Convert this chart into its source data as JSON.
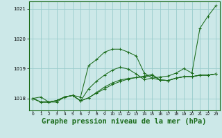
{
  "bg_color": "#cce8e8",
  "grid_color": "#99cccc",
  "line_color": "#1a6b1a",
  "xlabel": "Graphe pression niveau de la mer (hPa)",
  "xlabel_fontsize": 7.5,
  "ylim": [
    1017.6,
    1021.25
  ],
  "xlim": [
    -0.5,
    23.5
  ],
  "yticks": [
    1018,
    1019,
    1020,
    1021
  ],
  "xticks": [
    0,
    1,
    2,
    3,
    4,
    5,
    6,
    7,
    8,
    9,
    10,
    11,
    12,
    13,
    14,
    15,
    16,
    17,
    18,
    19,
    20,
    21,
    22,
    23
  ],
  "series": [
    [
      1018.0,
      1018.05,
      1017.88,
      1017.88,
      1018.05,
      1018.1,
      1018.05,
      1019.1,
      1019.3,
      1019.55,
      1019.65,
      1019.65,
      1019.55,
      1019.42,
      1018.85,
      1018.68,
      1018.72,
      1018.75,
      1018.85,
      1019.0,
      1018.85,
      1020.35,
      1020.75,
      1021.1
    ],
    [
      1018.0,
      1017.88,
      1017.88,
      1017.93,
      1018.05,
      1018.1,
      1017.92,
      1018.02,
      1018.18,
      1018.32,
      1018.47,
      1018.57,
      1018.65,
      1018.7,
      1018.75,
      1018.8,
      1018.62,
      1018.6,
      1018.68,
      1018.73,
      1018.73,
      1018.78,
      1018.78,
      1018.82
    ],
    [
      1018.0,
      1017.88,
      1017.88,
      1017.93,
      1018.05,
      1018.1,
      1017.92,
      1018.32,
      1018.58,
      1018.78,
      1018.95,
      1019.05,
      1018.98,
      1018.82,
      1018.63,
      1018.68,
      1018.62,
      1018.6,
      1018.68,
      1018.73,
      1018.73,
      1018.78,
      1018.78,
      1018.82
    ],
    [
      1018.0,
      1017.88,
      1017.88,
      1017.93,
      1018.05,
      1018.1,
      1017.92,
      1018.02,
      1018.2,
      1018.38,
      1018.52,
      1018.62,
      1018.67,
      1018.7,
      1018.72,
      1018.77,
      1018.62,
      1018.6,
      1018.68,
      1018.73,
      1018.73,
      1018.78,
      1018.78,
      1018.82
    ]
  ]
}
